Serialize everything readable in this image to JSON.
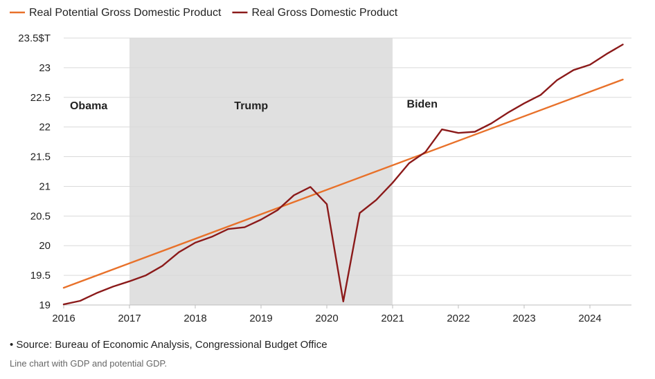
{
  "chart_data": {
    "type": "line",
    "title": "",
    "xlabel": "",
    "ylabel": "",
    "ylim": [
      19,
      23.5
    ],
    "xlim": [
      2016,
      2024.65
    ],
    "grid": true,
    "legend_position": "top-left",
    "x_ticks": [
      {
        "value": 2016,
        "label": "2016"
      },
      {
        "value": 2017,
        "label": "2017"
      },
      {
        "value": 2018,
        "label": "2018"
      },
      {
        "value": 2019,
        "label": "2019"
      },
      {
        "value": 2020,
        "label": "2020"
      },
      {
        "value": 2021,
        "label": "2021"
      },
      {
        "value": 2022,
        "label": "2022"
      },
      {
        "value": 2023,
        "label": "2023"
      },
      {
        "value": 2024,
        "label": "2024"
      }
    ],
    "y_ticks": [
      {
        "value": 19,
        "label": "19"
      },
      {
        "value": 19.5,
        "label": "19.5"
      },
      {
        "value": 20,
        "label": "20"
      },
      {
        "value": 20.5,
        "label": "20.5"
      },
      {
        "value": 21,
        "label": "21"
      },
      {
        "value": 21.5,
        "label": "21.5"
      },
      {
        "value": 22,
        "label": "22"
      },
      {
        "value": 22.5,
        "label": "22.5"
      },
      {
        "value": 23,
        "label": "23"
      },
      {
        "value": 23.5,
        "label": "23.5$T"
      }
    ],
    "shaded_region": {
      "from": 2017.0,
      "to": 2021.0,
      "color": "#e0e0e0"
    },
    "annotations": [
      {
        "text": "Obama",
        "x": 2016.38,
        "y": 22.3
      },
      {
        "text": "Trump",
        "x": 2018.85,
        "y": 22.3
      },
      {
        "text": "Biden",
        "x": 2021.45,
        "y": 22.33
      }
    ],
    "series": [
      {
        "name": "Real Potential Gross Domestic Product",
        "color": "#e8712a",
        "x": [
          2016.0,
          2024.5
        ],
        "values": [
          19.29,
          22.8
        ]
      },
      {
        "name": "Real Gross Domestic Product",
        "color": "#8b1a1a",
        "x": [
          2016.0,
          2016.25,
          2016.5,
          2016.75,
          2017.0,
          2017.25,
          2017.5,
          2017.75,
          2018.0,
          2018.25,
          2018.5,
          2018.75,
          2019.0,
          2019.25,
          2019.5,
          2019.75,
          2020.0,
          2020.25,
          2020.5,
          2020.75,
          2021.0,
          2021.25,
          2021.5,
          2021.75,
          2022.0,
          2022.25,
          2022.5,
          2022.75,
          2023.0,
          2023.25,
          2023.5,
          2023.75,
          2024.0,
          2024.25,
          2024.5
        ],
        "values": [
          19.01,
          19.07,
          19.2,
          19.31,
          19.4,
          19.5,
          19.66,
          19.89,
          20.05,
          20.15,
          20.28,
          20.31,
          20.44,
          20.6,
          20.85,
          20.99,
          20.7,
          19.06,
          20.55,
          20.77,
          21.06,
          21.39,
          21.58,
          21.96,
          21.9,
          21.92,
          22.06,
          22.24,
          22.4,
          22.54,
          22.79,
          22.96,
          23.05,
          23.23,
          23.39
        ]
      }
    ]
  },
  "source_note": "• Source: Bureau of Economic Analysis, Congressional Budget Office",
  "caption": "Line chart with GDP and potential GDP."
}
